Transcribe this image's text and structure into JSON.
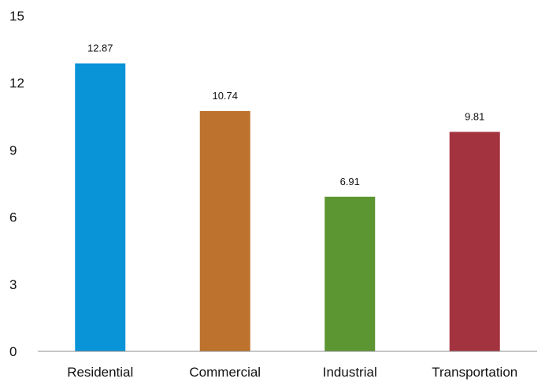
{
  "chart_data": {
    "type": "bar",
    "title": "",
    "xlabel": "",
    "ylabel": "",
    "categories": [
      "Residential",
      "Commercial",
      "Industrial",
      "Transportation"
    ],
    "values": [
      12.87,
      10.74,
      6.91,
      9.81
    ],
    "data_labels": [
      "12.87",
      "10.74",
      "6.91",
      "9.81"
    ],
    "colors": [
      "#0a94d8",
      "#bd722d",
      "#5b9632",
      "#a3333f"
    ],
    "ylim": [
      0,
      15
    ],
    "yticks": [
      0,
      3,
      6,
      9,
      12,
      15
    ],
    "ytick_labels": [
      "0",
      "3",
      "6",
      "9",
      "12",
      "15"
    ],
    "grid": false,
    "legend": "none",
    "axis_color": "#8c8c8c"
  }
}
